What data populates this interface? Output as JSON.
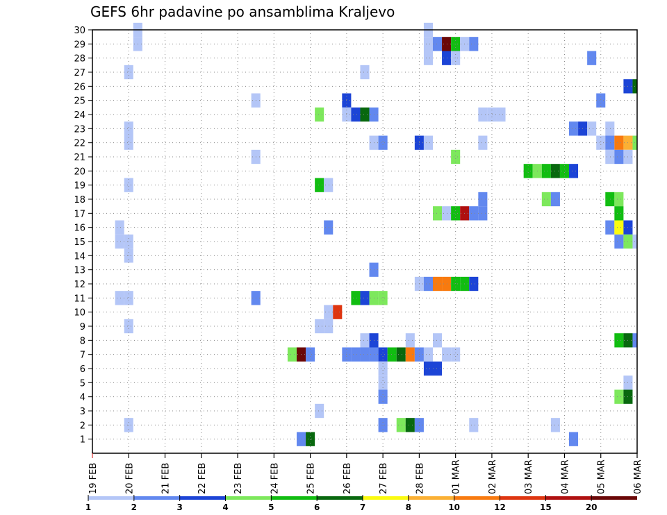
{
  "chart_data": {
    "type": "heatmap",
    "title": "GEFS 6hr padavine po ansamblima Kraljevo",
    "ylim": [
      0,
      30
    ],
    "y_ticks": [
      1,
      2,
      3,
      4,
      5,
      6,
      7,
      8,
      9,
      10,
      11,
      12,
      13,
      14,
      15,
      16,
      17,
      18,
      19,
      20,
      21,
      22,
      23,
      24,
      25,
      26,
      27,
      28,
      29,
      30
    ],
    "x_ticks": [
      "19 FEB",
      "20 FEB",
      "21 FEB",
      "22 FEB",
      "23 FEB",
      "24 FEB",
      "25 FEB",
      "26 FEB",
      "27 FEB",
      "28 FEB",
      "01 MAR",
      "02 MAR",
      "03 MAR",
      "04 MAR",
      "05 MAR",
      "06 MAR"
    ],
    "xlim_days": [
      0,
      15
    ],
    "grid": true,
    "levels": [
      "1",
      "2",
      "3",
      "4",
      "5",
      "6",
      "7",
      "8",
      "10",
      "12",
      "15",
      "20"
    ],
    "colors": [
      "#b4c6f7",
      "#6288ef",
      "#1c44d6",
      "#7de85c",
      "#11bd11",
      "#08680e",
      "#fbfb0f",
      "#fbb034",
      "#f87a0f",
      "#de3510",
      "#af1010",
      "#6a0707"
    ],
    "cells": [
      [
        1.25,
        30,
        1
      ],
      [
        1.25,
        29,
        1
      ],
      [
        1,
        27,
        1
      ],
      [
        1,
        23,
        1
      ],
      [
        1,
        22,
        1
      ],
      [
        0.75,
        16,
        1
      ],
      [
        0.75,
        15,
        1
      ],
      [
        1,
        15,
        1
      ],
      [
        1,
        19,
        1
      ],
      [
        1,
        11,
        1
      ],
      [
        0.75,
        11,
        1
      ],
      [
        1,
        9,
        1
      ],
      [
        1,
        2,
        1
      ],
      [
        1,
        14,
        1
      ],
      [
        4.5,
        25,
        1
      ],
      [
        4.5,
        21,
        1
      ],
      [
        4.5,
        11,
        2
      ],
      [
        5.75,
        1,
        2
      ],
      [
        6,
        1,
        6
      ],
      [
        5.5,
        7,
        4
      ],
      [
        5.75,
        7,
        12
      ],
      [
        6,
        7,
        2
      ],
      [
        6.25,
        24,
        4
      ],
      [
        6.25,
        19,
        5
      ],
      [
        6.5,
        19,
        1
      ],
      [
        6.5,
        16,
        2
      ],
      [
        6.25,
        9,
        1
      ],
      [
        6.5,
        9,
        1
      ],
      [
        6.5,
        10,
        1
      ],
      [
        6.75,
        10,
        10
      ],
      [
        6.25,
        3,
        1
      ],
      [
        7,
        25,
        3
      ],
      [
        7,
        24,
        1
      ],
      [
        7.25,
        24,
        3
      ],
      [
        7.5,
        24,
        6
      ],
      [
        7.75,
        24,
        2
      ],
      [
        7.25,
        11,
        5
      ],
      [
        7.5,
        11,
        3
      ],
      [
        7.75,
        11,
        4
      ],
      [
        8,
        11,
        4
      ],
      [
        7.5,
        27,
        1
      ],
      [
        7.75,
        22,
        1
      ],
      [
        8,
        22,
        2
      ],
      [
        7.75,
        13,
        2
      ],
      [
        7.5,
        8,
        1
      ],
      [
        7.75,
        8,
        3
      ],
      [
        7,
        7,
        2
      ],
      [
        7.25,
        7,
        2
      ],
      [
        7.5,
        7,
        2
      ],
      [
        7.75,
        7,
        2
      ],
      [
        8,
        7,
        3
      ],
      [
        8.25,
        7,
        5
      ],
      [
        8.5,
        7,
        6
      ],
      [
        8.75,
        7,
        9
      ],
      [
        9,
        7,
        2
      ],
      [
        9.25,
        7,
        1
      ],
      [
        9.75,
        7,
        1
      ],
      [
        10,
        7,
        1
      ],
      [
        8,
        6,
        1
      ],
      [
        8,
        5,
        1
      ],
      [
        8,
        4,
        2
      ],
      [
        8,
        2,
        2
      ],
      [
        8.5,
        2,
        4
      ],
      [
        8.75,
        2,
        6
      ],
      [
        9,
        2,
        2
      ],
      [
        8.75,
        8,
        1
      ],
      [
        9.5,
        8,
        1
      ],
      [
        9.25,
        6,
        3
      ],
      [
        9.5,
        6,
        3
      ],
      [
        9.25,
        29,
        1
      ],
      [
        9.25,
        30,
        1
      ],
      [
        9.25,
        28,
        1
      ],
      [
        9.5,
        29,
        2
      ],
      [
        9.75,
        29,
        12
      ],
      [
        10,
        29,
        5
      ],
      [
        10.25,
        29,
        1
      ],
      [
        10.5,
        29,
        2
      ],
      [
        9.75,
        28,
        3
      ],
      [
        10,
        28,
        1
      ],
      [
        9,
        22,
        3
      ],
      [
        9.25,
        22,
        1
      ],
      [
        9,
        12,
        1
      ],
      [
        9.25,
        12,
        2
      ],
      [
        9.5,
        12,
        9
      ],
      [
        9.75,
        12,
        9
      ],
      [
        10,
        12,
        5
      ],
      [
        10.25,
        12,
        5
      ],
      [
        10.5,
        12,
        3
      ],
      [
        9.5,
        17,
        4
      ],
      [
        9.75,
        17,
        1
      ],
      [
        10,
        17,
        5
      ],
      [
        10.25,
        17,
        11
      ],
      [
        10.5,
        17,
        2
      ],
      [
        10.75,
        17,
        2
      ],
      [
        10,
        21,
        4
      ],
      [
        10.75,
        22,
        1
      ],
      [
        10.75,
        18,
        2
      ],
      [
        10.5,
        2,
        1
      ],
      [
        10.75,
        24,
        1
      ],
      [
        11,
        24,
        1
      ],
      [
        11.25,
        24,
        1
      ],
      [
        12,
        20,
        5
      ],
      [
        12.25,
        20,
        4
      ],
      [
        12.5,
        20,
        5
      ],
      [
        12.75,
        20,
        6
      ],
      [
        13,
        20,
        5
      ],
      [
        13.25,
        20,
        3
      ],
      [
        12.5,
        18,
        4
      ],
      [
        12.75,
        18,
        2
      ],
      [
        12.75,
        2,
        1
      ],
      [
        13.25,
        1,
        2
      ],
      [
        13.25,
        23,
        2
      ],
      [
        13.5,
        23,
        3
      ],
      [
        13.75,
        23,
        1
      ],
      [
        13.75,
        28,
        2
      ],
      [
        14,
        25,
        2
      ],
      [
        14.25,
        23,
        1
      ],
      [
        14,
        22,
        1
      ],
      [
        14.25,
        22,
        2
      ],
      [
        14.5,
        22,
        9
      ],
      [
        14.75,
        22,
        8
      ],
      [
        15,
        22,
        4
      ],
      [
        14.25,
        21,
        1
      ],
      [
        14.5,
        21,
        2
      ],
      [
        14.75,
        21,
        1
      ],
      [
        14.25,
        18,
        5
      ],
      [
        14.5,
        18,
        4
      ],
      [
        14.5,
        17,
        5
      ],
      [
        14.25,
        16,
        2
      ],
      [
        14.5,
        16,
        7
      ],
      [
        14.75,
        16,
        3
      ],
      [
        14.5,
        15,
        2
      ],
      [
        14.75,
        15,
        4
      ],
      [
        15,
        15,
        1
      ],
      [
        14.5,
        8,
        5
      ],
      [
        14.75,
        8,
        6
      ],
      [
        15,
        8,
        2
      ],
      [
        15.25,
        8,
        8
      ],
      [
        15.5,
        8,
        2
      ],
      [
        14.5,
        4,
        4
      ],
      [
        14.75,
        4,
        6
      ],
      [
        14.75,
        5,
        1
      ],
      [
        14.75,
        26,
        3
      ],
      [
        15,
        26,
        6
      ],
      [
        15.25,
        26,
        10
      ],
      [
        15.5,
        26,
        3
      ],
      [
        15.25,
        28,
        8
      ],
      [
        15.5,
        25,
        1
      ],
      [
        15.5,
        10,
        5
      ]
    ]
  }
}
